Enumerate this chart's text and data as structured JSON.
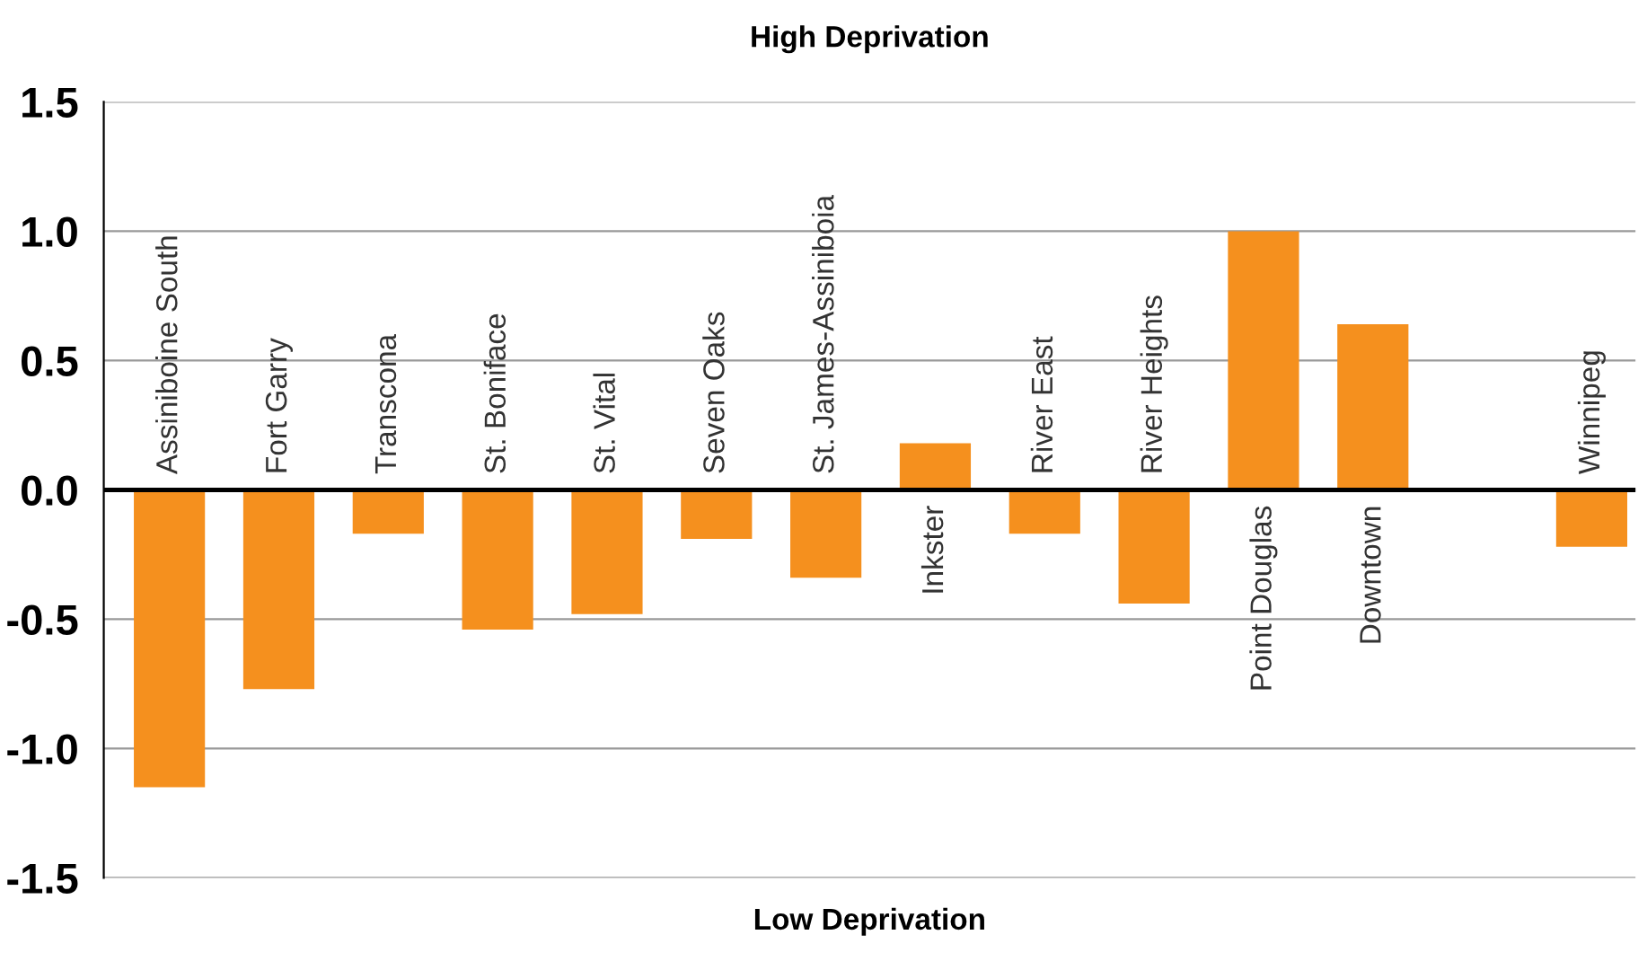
{
  "chart_data": {
    "type": "bar",
    "title": "High Deprivation",
    "xlabel": "Low Deprivation",
    "categories": [
      "Assiniboine South",
      "Fort Garry",
      "Transcona",
      "St. Boniface",
      "St. Vital",
      "Seven Oaks",
      "St. James-Assiniboia",
      "Inkster",
      "River East",
      "River Heights",
      "Point Douglas",
      "Downtown",
      null,
      "Winnipeg"
    ],
    "values": [
      -1.15,
      -0.77,
      -0.17,
      -0.54,
      -0.48,
      -0.19,
      -0.34,
      0.18,
      -0.17,
      -0.44,
      1.0,
      0.64,
      null,
      -0.22
    ],
    "color": "#f5901e",
    "ylim": [
      -1.5,
      1.5
    ],
    "yticks": [
      {
        "value": -1.5,
        "label": "-1.5"
      },
      {
        "value": -1.0,
        "label": "-1.0"
      },
      {
        "value": -0.5,
        "label": "-0.5"
      },
      {
        "value": 0.0,
        "label": "0.0"
      },
      {
        "value": 0.5,
        "label": "0.5"
      },
      {
        "value": 1.0,
        "label": "1.0"
      },
      {
        "value": 1.5,
        "label": "1.5"
      }
    ],
    "grid": "y",
    "legend": false
  }
}
